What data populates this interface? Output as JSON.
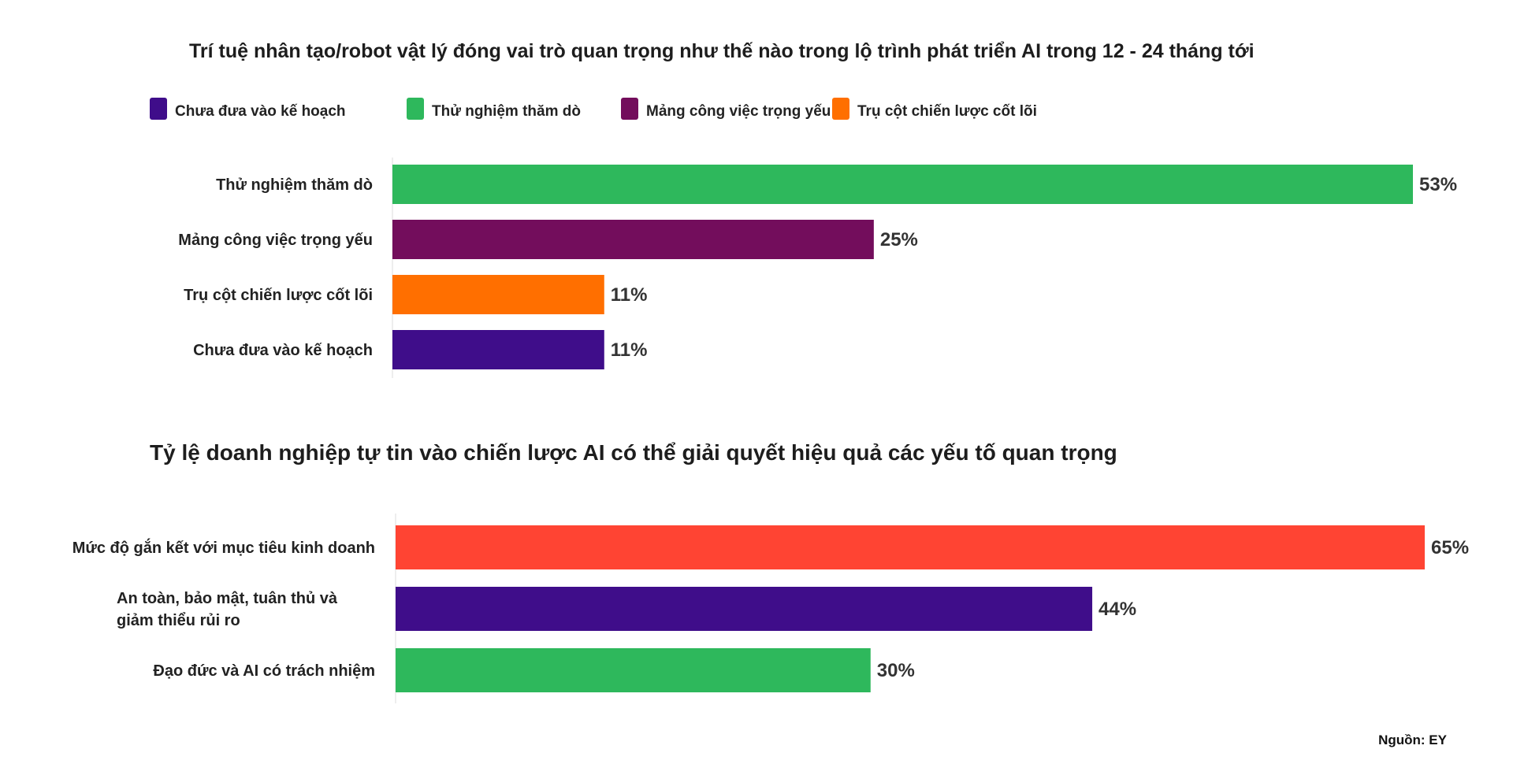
{
  "chart_data": [
    {
      "type": "bar",
      "orientation": "horizontal",
      "title": "Trí tuệ nhân tạo/robot vật lý đóng vai trò quan trọng như thế nào trong lộ trình phát triển AI trong 12 - 24 tháng tới",
      "legend": [
        {
          "label": "Chưa đưa vào kế hoạch",
          "color": "#3F0D8A"
        },
        {
          "label": "Thử nghiệm thăm dò",
          "color": "#2EB85C"
        },
        {
          "label": "Mảng công việc trọng yếu",
          "color": "#730D5C"
        },
        {
          "label": "Trụ cột chiến lược cốt lõi",
          "color": "#FF6F00"
        }
      ],
      "legend_position": "top-left",
      "categories": [
        "Thử nghiệm thăm dò",
        "Mảng công việc trọng yếu",
        "Trụ cột chiến lược cốt lõi",
        "Chưa đưa vào kế hoạch"
      ],
      "values": [
        53,
        25,
        11,
        11
      ],
      "value_labels": [
        "53%",
        "25%",
        "11%",
        "11%"
      ],
      "colors": [
        "#2EB85C",
        "#730D5C",
        "#FF6F00",
        "#3F0D8A"
      ],
      "xlim": [
        0,
        53
      ],
      "grid": false
    },
    {
      "type": "bar",
      "orientation": "horizontal",
      "title": "Tỷ lệ doanh nghiệp tự tin vào chiến lược AI có thể giải quyết hiệu quả các yếu tố quan trọng",
      "categories": [
        [
          "Mức độ gắn kết với mục tiêu kinh doanh"
        ],
        [
          "An toàn, bảo mật, tuân thủ và",
          "giảm thiểu rủi ro"
        ],
        [
          "Đạo đức và AI có trách nhiệm"
        ]
      ],
      "values": [
        65,
        44,
        30
      ],
      "value_labels": [
        "65%",
        "44%",
        "30%"
      ],
      "colors": [
        "#FF4433",
        "#3F0D8A",
        "#2EB85C"
      ],
      "xlim": [
        0,
        65
      ],
      "grid": false
    }
  ],
  "source": "Nguồn: EY"
}
